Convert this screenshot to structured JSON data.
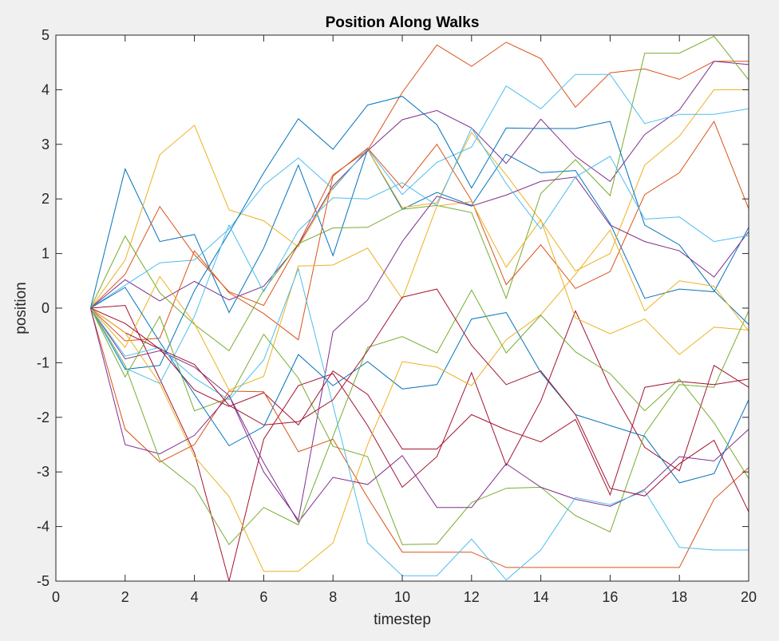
{
  "chart_data": {
    "type": "line",
    "title": "Position Along Walks",
    "xlabel": "timestep",
    "ylabel": "position",
    "xlim": [
      0,
      20
    ],
    "ylim": [
      -5,
      5
    ],
    "x_ticks": [
      0,
      2,
      4,
      6,
      8,
      10,
      12,
      14,
      16,
      18,
      20
    ],
    "y_ticks": [
      -5,
      -4,
      -3,
      -2,
      -1,
      0,
      1,
      2,
      3,
      4,
      5
    ],
    "grid": false,
    "legend": "none",
    "colors": [
      "#0072BD",
      "#D95319",
      "#EDB120",
      "#7E2F8E",
      "#77AC30",
      "#4DBEEE",
      "#A2142F"
    ],
    "x": [
      1,
      2,
      3,
      4,
      5,
      6,
      7,
      8,
      9,
      10,
      11,
      12,
      13,
      14,
      15,
      16,
      17,
      18,
      19,
      20
    ],
    "series": [
      {
        "values": [
          0,
          2.55,
          1.22,
          1.35,
          -0.08,
          1.1,
          2.62,
          0.96,
          2.91,
          1.81,
          2.12,
          1.88,
          2.82,
          2.48,
          2.52,
          1.55,
          0.18,
          0.35,
          0.3,
          1.48
        ]
      },
      {
        "values": [
          0,
          0.62,
          1.86,
          0.98,
          0.3,
          0.05,
          1.17,
          2.44,
          2.89,
          3.95,
          4.82,
          4.43,
          4.87,
          4.57,
          3.68,
          4.31,
          4.38,
          4.19,
          4.52,
          4.52
        ]
      },
      {
        "values": [
          0,
          0.88,
          2.81,
          3.35,
          1.8,
          1.6,
          1.12,
          2.2,
          2.91,
          1.84,
          1.93,
          3.22,
          2.44,
          1.6,
          0.68,
          1.0,
          2.62,
          3.15,
          4.0,
          4.0
        ]
      },
      {
        "values": [
          0,
          0.52,
          0.13,
          0.49,
          0.15,
          0.4,
          1.16,
          2.24,
          2.88,
          3.45,
          3.62,
          3.3,
          2.65,
          3.46,
          2.78,
          2.32,
          3.18,
          3.63,
          4.52,
          4.46
        ]
      },
      {
        "values": [
          0,
          1.32,
          0.28,
          -0.3,
          -0.78,
          0.33,
          1.18,
          1.47,
          1.48,
          1.81,
          1.88,
          1.75,
          0.18,
          2.1,
          2.72,
          2.06,
          4.67,
          4.67,
          4.98,
          4.18
        ]
      },
      {
        "values": [
          0,
          0.42,
          0.83,
          0.88,
          1.45,
          2.25,
          2.75,
          2.18,
          2.92,
          2.08,
          2.67,
          2.95,
          4.07,
          3.65,
          4.28,
          4.28,
          3.38,
          3.55,
          3.55,
          3.65
        ]
      },
      {
        "values": [
          0,
          0.05,
          -1.3,
          -2.65,
          -5.0,
          -2.4,
          -1.42,
          -1.2,
          -2.15,
          -3.28,
          -2.72,
          -1.18,
          -2.88,
          -1.7,
          -0.05,
          -1.45,
          -2.55,
          -2.98,
          -1.05,
          -1.45
        ]
      },
      {
        "values": [
          0,
          -1.12,
          -1.05,
          0.32,
          1.38,
          2.48,
          3.47,
          2.91,
          3.72,
          3.88,
          3.36,
          2.2,
          3.3,
          3.29,
          3.29,
          3.42,
          1.52,
          1.16,
          0.32,
          -0.3
        ]
      },
      {
        "values": [
          0,
          -0.6,
          -0.55,
          1.05,
          0.28,
          -0.1,
          -0.58,
          2.42,
          2.93,
          2.2,
          3.0,
          1.97,
          0.43,
          1.16,
          0.36,
          0.67,
          2.08,
          2.48,
          3.42,
          1.82
        ]
      },
      {
        "values": [
          0,
          -0.72,
          0.58,
          -0.28,
          -1.5,
          -1.25,
          0.77,
          0.79,
          1.1,
          0.17,
          1.87,
          1.95,
          0.75,
          1.62,
          -0.18,
          -0.47,
          -0.2,
          -0.85,
          -0.35,
          -0.4
        ]
      },
      {
        "values": [
          0,
          -0.93,
          -0.78,
          -1.08,
          -1.6,
          -3.0,
          -3.88,
          -0.43,
          0.15,
          1.22,
          2.05,
          1.87,
          2.07,
          2.32,
          2.4,
          1.52,
          1.22,
          1.05,
          0.57,
          1.4
        ]
      },
      {
        "values": [
          0,
          -1.26,
          -0.15,
          -1.88,
          -1.65,
          -0.48,
          -1.28,
          -2.53,
          -2.72,
          -4.33,
          -4.32,
          -3.56,
          -3.3,
          -3.28,
          -3.8,
          -4.1,
          -2.3,
          -1.4,
          -1.45,
          -0.05
        ]
      },
      {
        "values": [
          0,
          -1.1,
          -1.38,
          -0.15,
          1.52,
          0.3,
          1.42,
          2.02,
          2.0,
          2.3,
          1.88,
          3.3,
          2.28,
          1.45,
          2.4,
          2.78,
          1.63,
          1.67,
          1.22,
          1.33
        ]
      },
      {
        "values": [
          0,
          -0.45,
          -0.75,
          -1.5,
          -1.8,
          -1.55,
          -2.14,
          -1.15,
          -1.58,
          -2.58,
          -2.58,
          -1.95,
          -2.23,
          -2.45,
          -2.04,
          -3.42,
          -1.45,
          -1.34,
          -1.4,
          -1.3
        ]
      },
      {
        "values": [
          0,
          0.38,
          -0.62,
          -1.58,
          -2.52,
          -2.17,
          -0.85,
          -1.42,
          -0.98,
          -1.48,
          -1.4,
          -0.2,
          -0.08,
          -1.18,
          -1.95,
          -2.15,
          -2.35,
          -3.2,
          -3.03,
          -1.68
        ]
      },
      {
        "values": [
          0,
          -2.22,
          -2.82,
          -2.5,
          -1.52,
          -1.53,
          -2.63,
          -2.4,
          -3.47,
          -4.47,
          -4.47,
          -4.47,
          -4.75,
          -4.75,
          -4.75,
          -4.75,
          -4.75,
          -4.75,
          -3.5,
          -2.92
        ]
      },
      {
        "values": [
          0,
          -0.45,
          -1.38,
          -2.72,
          -3.45,
          -4.82,
          -4.82,
          -4.3,
          -2.5,
          -0.98,
          -1.08,
          -1.42,
          -0.58,
          -0.12,
          0.62,
          1.43,
          -0.05,
          0.5,
          0.4,
          -0.42
        ]
      },
      {
        "values": [
          0,
          -2.5,
          -2.67,
          -2.33,
          -1.6,
          -2.83,
          -3.92,
          -3.1,
          -3.23,
          -2.7,
          -3.65,
          -3.65,
          -2.85,
          -3.28,
          -3.5,
          -3.63,
          -3.32,
          -2.72,
          -2.8,
          -2.22
        ]
      },
      {
        "values": [
          0,
          -1.05,
          -2.78,
          -3.28,
          -4.33,
          -3.65,
          -3.97,
          -2.35,
          -0.72,
          -0.52,
          -0.82,
          0.33,
          -0.82,
          -0.13,
          -0.8,
          -1.2,
          -1.88,
          -1.3,
          -2.1,
          -3.12
        ]
      },
      {
        "values": [
          0,
          -0.88,
          -0.72,
          -1.28,
          -1.68,
          -0.95,
          0.72,
          -1.78,
          -4.3,
          -4.9,
          -4.9,
          -4.23,
          -4.98,
          -4.43,
          -3.47,
          -3.6,
          -3.35,
          -4.38,
          -4.43,
          -4.43
        ]
      },
      {
        "values": [
          0,
          -0.28,
          -0.75,
          -1.03,
          -1.78,
          -2.14,
          -2.08,
          -1.68,
          -0.78,
          0.2,
          0.35,
          -0.68,
          -1.4,
          -1.15,
          -1.95,
          -3.3,
          -3.44,
          -2.85,
          -2.42,
          -3.73
        ]
      }
    ]
  }
}
